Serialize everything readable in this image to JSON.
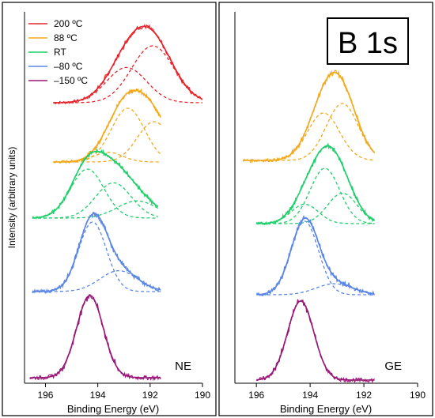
{
  "figure": {
    "ylabel": "Intensity (arbitrary units)",
    "title_box": "B 1s"
  },
  "legend": {
    "placement": "top-left of left panel",
    "entries": [
      {
        "label": "200 ºC",
        "color": "#e8242a"
      },
      {
        "label": "88 ºC",
        "color": "#f4a91c"
      },
      {
        "label": "RT",
        "color": "#1fcf6b"
      },
      {
        "label": "–80 ºC",
        "color": "#5b86e6"
      },
      {
        "label": "–150 ºC",
        "color": "#9a1677"
      }
    ]
  },
  "chart_data": [
    {
      "type": "line",
      "panel_label": "NE",
      "xlabel": "Binding Energy (eV)",
      "xlim": [
        196.8,
        190
      ],
      "x_reversed": true,
      "xticks": [
        196,
        194,
        192,
        190
      ],
      "series": [
        {
          "name": "200 ºC",
          "color": "#e8242a",
          "x_range": [
            195.7,
            190.0
          ],
          "peaks": [
            {
              "center": 192.9,
              "fwhm": 1.8,
              "height": 0.62
            },
            {
              "center": 191.9,
              "fwhm": 1.9,
              "height": 1.0
            }
          ]
        },
        {
          "name": "88 ºC",
          "color": "#f4a91c",
          "x_range": [
            195.7,
            191.6
          ],
          "peaks": [
            {
              "center": 193.6,
              "fwhm": 1.3,
              "height": 0.18
            },
            {
              "center": 192.85,
              "fwhm": 1.5,
              "height": 1.0
            },
            {
              "center": 191.85,
              "fwhm": 1.5,
              "height": 0.75
            }
          ]
        },
        {
          "name": "RT",
          "color": "#1fcf6b",
          "x_range": [
            196.5,
            191.7
          ],
          "peaks": [
            {
              "center": 194.4,
              "fwhm": 1.5,
              "height": 1.0
            },
            {
              "center": 193.4,
              "fwhm": 1.6,
              "height": 0.72
            },
            {
              "center": 192.5,
              "fwhm": 1.8,
              "height": 0.35
            }
          ]
        },
        {
          "name": "–80 ºC",
          "color": "#5b86e6",
          "x_range": [
            196.5,
            191.6
          ],
          "peaks": [
            {
              "center": 194.2,
              "fwhm": 1.25,
              "height": 1.0
            },
            {
              "center": 193.2,
              "fwhm": 1.7,
              "height": 0.3
            }
          ]
        },
        {
          "name": "–150 ºC",
          "color": "#9a1677",
          "x_range": [
            196.6,
            191.6
          ],
          "peaks": [
            {
              "center": 194.3,
              "fwhm": 1.2,
              "height": 1.0
            }
          ]
        }
      ]
    },
    {
      "type": "line",
      "panel_label": "GE",
      "xlabel": "Binding Energy (eV)",
      "xlim": [
        196.8,
        190
      ],
      "x_reversed": true,
      "xticks": [
        196,
        194,
        192,
        190
      ],
      "series": [
        {
          "name": "88 ºC",
          "color": "#f4a91c",
          "x_range": [
            196.5,
            191.6
          ],
          "peaks": [
            {
              "center": 193.5,
              "fwhm": 1.4,
              "height": 0.75
            },
            {
              "center": 192.8,
              "fwhm": 1.4,
              "height": 0.9
            }
          ]
        },
        {
          "name": "RT",
          "color": "#1fcf6b",
          "x_range": [
            196.0,
            191.6
          ],
          "peaks": [
            {
              "center": 194.2,
              "fwhm": 1.2,
              "height": 0.35
            },
            {
              "center": 193.45,
              "fwhm": 1.3,
              "height": 1.0
            },
            {
              "center": 192.8,
              "fwhm": 1.3,
              "height": 0.55
            }
          ]
        },
        {
          "name": "–80 ºC",
          "color": "#5b86e6",
          "x_range": [
            196.0,
            191.6
          ],
          "peaks": [
            {
              "center": 194.2,
              "fwhm": 1.2,
              "height": 1.0
            },
            {
              "center": 193.1,
              "fwhm": 1.6,
              "height": 0.15
            }
          ]
        },
        {
          "name": "–150 ºC",
          "color": "#9a1677",
          "x_range": [
            196.0,
            191.6
          ],
          "peaks": [
            {
              "center": 194.35,
              "fwhm": 1.15,
              "height": 1.0
            }
          ]
        }
      ]
    }
  ]
}
